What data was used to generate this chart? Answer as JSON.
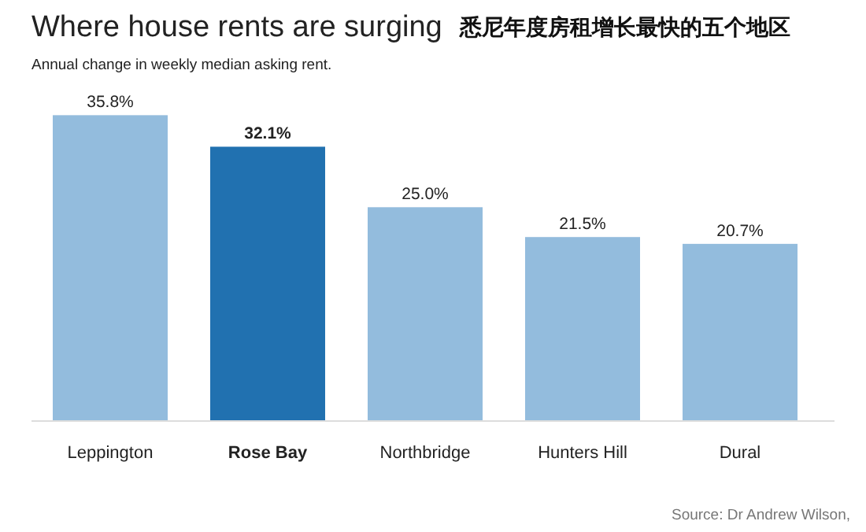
{
  "chart_data": {
    "type": "bar",
    "title": "Where house rents are surging",
    "subtitle": "Annual change in weekly median asking rent.",
    "annotations": [
      "悉尼年度房租增长最快的五个地区",
      "Source: Dr Andrew Wilson,"
    ],
    "categories": [
      "Leppington",
      "Rose Bay",
      "Northbridge",
      "Hunters Hill",
      "Dural"
    ],
    "values": [
      35.8,
      32.1,
      25.0,
      21.5,
      20.7
    ],
    "value_labels": [
      "35.8%",
      "32.1%",
      "25.0%",
      "21.5%",
      "20.7%"
    ],
    "colors": [
      "#93bcdd",
      "#2171b0",
      "#93bcdd",
      "#93bcdd",
      "#93bcdd"
    ]
  }
}
